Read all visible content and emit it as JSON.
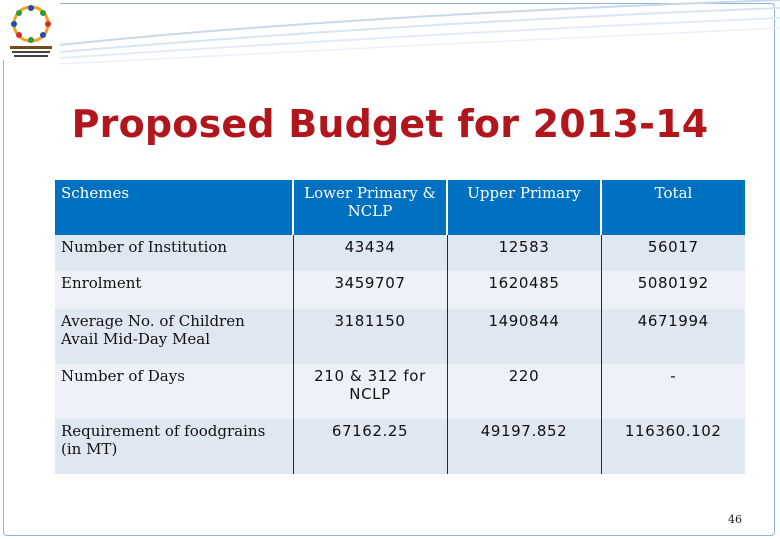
{
  "title": "Proposed Budget for 2013-14",
  "table": {
    "headers": [
      "Schemes",
      "Lower Primary & NCLP",
      "Upper Primary",
      "Total"
    ],
    "rows": [
      [
        "Number of Institution",
        "43434",
        "12583",
        "56017"
      ],
      [
        "Enrolment",
        "3459707",
        "1620485",
        "5080192"
      ],
      [
        "Average No. of Children Avail Mid-Day Meal",
        "3181150",
        "1490844",
        "4671994"
      ],
      [
        "Number of Days",
        "210 & 312 for NCLP",
        "220",
        "-"
      ],
      [
        "Requirement of foodgrains (in MT)",
        "67162.25",
        "49197.852",
        "116360.102"
      ]
    ]
  },
  "page_number": "46",
  "colors": {
    "title": "#b0161c",
    "header_bg": "#0070c0",
    "row_light": "#eef2f8",
    "row_dark": "#dfe7f2"
  }
}
